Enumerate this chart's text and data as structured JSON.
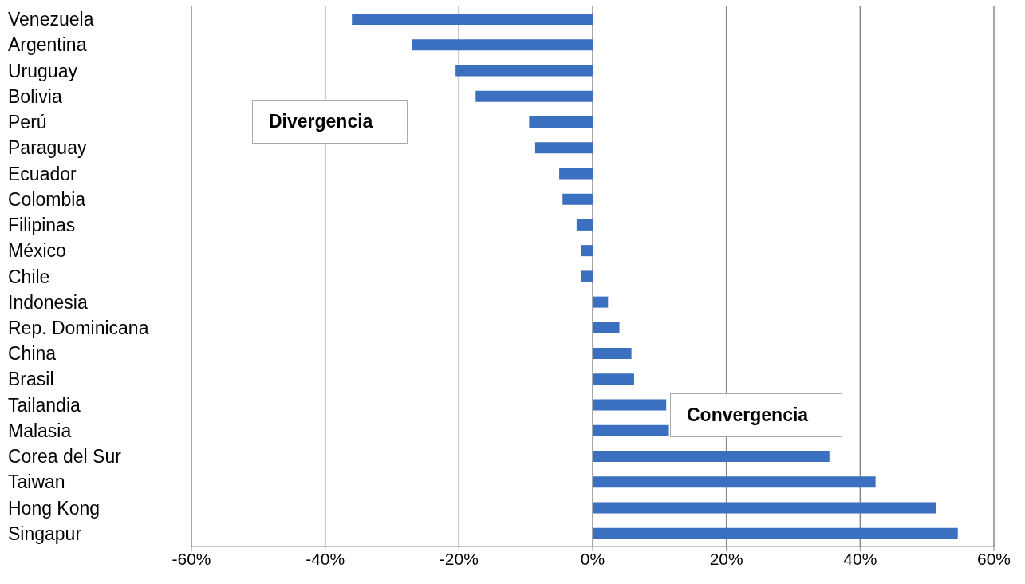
{
  "chart_data": {
    "type": "bar",
    "orientation": "horizontal",
    "categories": [
      "Venezuela",
      "Argentina",
      "Uruguay",
      "Bolivia",
      "Perú",
      "Paraguay",
      "Ecuador",
      "Colombia",
      "Filipinas",
      "México",
      "Chile",
      "Indonesia",
      "Rep. Dominicana",
      "China",
      "Brasil",
      "Tailandia",
      "Malasia",
      "Corea del Sur",
      "Taiwan",
      "Hong Kong",
      "Singapur"
    ],
    "values": [
      -36.0,
      -27.0,
      -20.5,
      -17.5,
      -9.5,
      -8.6,
      -5.0,
      -4.5,
      -2.4,
      -1.7,
      -1.7,
      2.3,
      4.0,
      5.8,
      6.2,
      11.0,
      11.4,
      35.4,
      42.3,
      51.3,
      54.6
    ],
    "color": "#3b6fbf",
    "xlim": [
      -60,
      60
    ],
    "xticks": [
      {
        "value": -60,
        "label": "-60%"
      },
      {
        "value": -40,
        "label": "-40%"
      },
      {
        "value": -20,
        "label": "-20%"
      },
      {
        "value": 0,
        "label": "0%"
      },
      {
        "value": 20,
        "label": "20%"
      },
      {
        "value": 40,
        "label": "40%"
      },
      {
        "value": 60,
        "label": "60%"
      }
    ],
    "grid": "x",
    "annotations": [
      "Divergencia",
      "Convergencia"
    ]
  }
}
